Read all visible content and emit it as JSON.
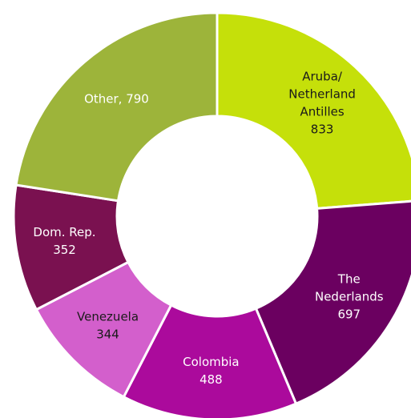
{
  "chart_data": {
    "type": "pie",
    "title": "",
    "slices": [
      {
        "name": "Aruba/ Netherland Antilles",
        "value": 833,
        "color": "#c5e00a",
        "label_color": "#1a1a1a",
        "label_lines": [
          "Aruba/",
          "Netherland",
          "Antilles",
          "833"
        ]
      },
      {
        "name": "The Nederlands",
        "value": 697,
        "color": "#6b0060",
        "label_color": "#ffffff",
        "label_lines": [
          "The",
          "Nederlands",
          "697"
        ]
      },
      {
        "name": "Colombia",
        "value": 488,
        "color": "#ab0a9c",
        "label_color": "#ffffff",
        "label_lines": [
          "Colombia",
          "488"
        ]
      },
      {
        "name": "Venezuela",
        "value": 344,
        "color": "#d35fcc",
        "label_color": "#1a1a1a",
        "label_lines": [
          "Venezuela",
          "344"
        ]
      },
      {
        "name": "Dom. Rep.",
        "value": 352,
        "color": "#7a1150",
        "label_color": "#ffffff",
        "label_lines": [
          "Dom. Rep.",
          "352"
        ]
      },
      {
        "name": "Other",
        "value": 790,
        "color": "#9db43a",
        "label_color": "#ffffff",
        "label_lines": [
          "Other, 790"
        ]
      }
    ]
  }
}
